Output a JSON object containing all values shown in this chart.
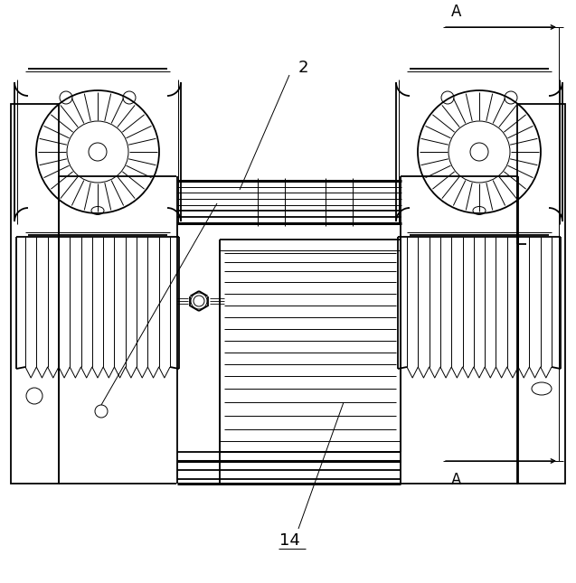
{
  "bg_color": "#ffffff",
  "line_color": "#000000",
  "fig_width": 6.37,
  "fig_height": 6.45,
  "dpi": 100,
  "label_2": "2",
  "label_14": "14",
  "label_A_top": "A",
  "label_A_bottom": "A"
}
